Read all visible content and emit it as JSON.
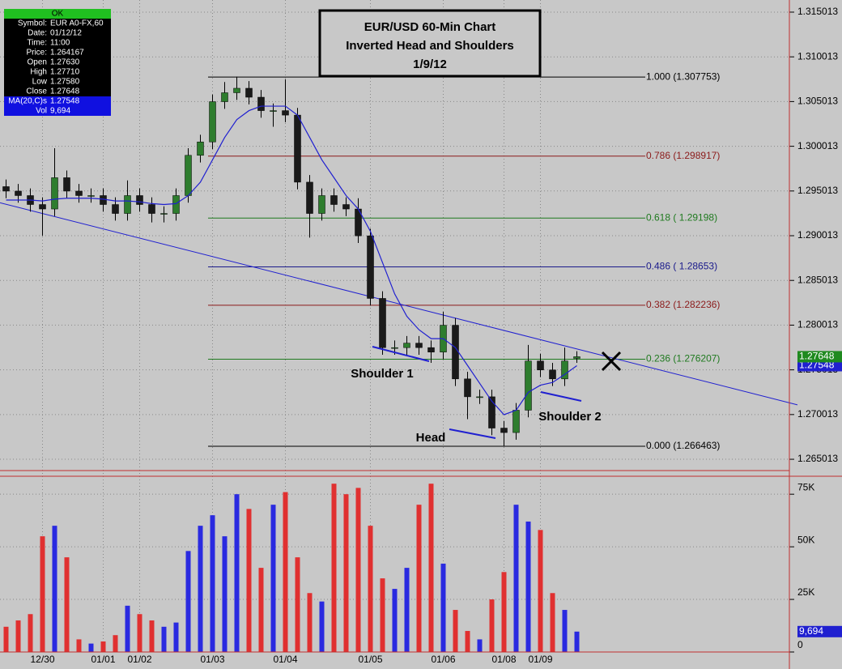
{
  "chart_data": {
    "type": "candlestick",
    "title": [
      "EUR/USD 60-Min Chart",
      "Inverted Head and Shoulders",
      "1/9/12"
    ],
    "info_box": {
      "status": "OK",
      "rows": [
        [
          "Symbol:",
          "EUR A0-FX,60"
        ],
        [
          "Date:",
          "01/12/12"
        ],
        [
          "Time:",
          "11:00"
        ],
        [
          "Price:",
          "1.264167"
        ],
        [
          "Open",
          "1.27630"
        ],
        [
          "High",
          "1.27710"
        ],
        [
          "Low",
          "1.27580"
        ],
        [
          "Close",
          "1.27648"
        ],
        [
          "MA(20,C)s",
          "1.27548"
        ],
        [
          "Vol",
          "9,694"
        ]
      ]
    },
    "categories": [
      null,
      null,
      null,
      "12/30",
      null,
      null,
      null,
      null,
      "01/01",
      null,
      null,
      "01/02",
      null,
      null,
      null,
      null,
      null,
      "01/03",
      null,
      null,
      null,
      null,
      null,
      "01/04",
      null,
      null,
      null,
      null,
      null,
      null,
      "01/05",
      null,
      null,
      null,
      null,
      null,
      "01/06",
      null,
      null,
      null,
      null,
      "01/08",
      null,
      null,
      "01/09",
      null,
      null,
      null
    ],
    "open": [
      1.2955,
      1.295,
      1.2945,
      1.2935,
      1.293,
      1.2965,
      1.295,
      1.2945,
      1.2945,
      1.2935,
      1.2925,
      1.2945,
      1.2935,
      1.2925,
      1.2925,
      1.2945,
      1.299,
      1.3005,
      1.305,
      1.306,
      1.3065,
      1.3055,
      1.304,
      1.304,
      1.3035,
      1.296,
      1.2925,
      1.2945,
      1.2935,
      1.293,
      1.29,
      1.283,
      1.2775,
      1.2775,
      1.278,
      1.2775,
      1.277,
      1.28,
      1.274,
      1.272,
      1.272,
      1.2685,
      1.268,
      1.2705,
      1.276,
      1.275,
      1.274,
      1.2763
    ],
    "high": [
      1.2963,
      1.2958,
      1.2953,
      1.2943,
      1.2998,
      1.2973,
      1.2958,
      1.2953,
      1.2953,
      1.2943,
      1.2962,
      1.2953,
      1.2943,
      1.2933,
      1.2953,
      1.2998,
      1.3013,
      1.3058,
      1.3072,
      1.3078,
      1.3073,
      1.3063,
      1.3048,
      1.3075,
      1.3043,
      1.2968,
      1.2953,
      1.2953,
      1.2943,
      1.2942,
      1.2908,
      1.2838,
      1.2783,
      1.2788,
      1.2788,
      1.2783,
      1.2815,
      1.2808,
      1.2748,
      1.2728,
      1.2728,
      1.2693,
      1.2713,
      1.2778,
      1.2768,
      1.2758,
      1.2775,
      1.2771
    ],
    "low": [
      1.2942,
      1.2937,
      1.2927,
      1.29,
      1.2922,
      1.2942,
      1.2937,
      1.2937,
      1.2927,
      1.2917,
      1.2917,
      1.2927,
      1.2915,
      1.2915,
      1.2917,
      1.2937,
      1.2982,
      1.2997,
      1.3042,
      1.3052,
      1.3047,
      1.3032,
      1.3022,
      1.3027,
      1.2952,
      1.2898,
      1.2917,
      1.2927,
      1.2922,
      1.2892,
      1.2822,
      1.2767,
      1.2767,
      1.2767,
      1.2767,
      1.2758,
      1.2762,
      1.2732,
      1.2695,
      1.2712,
      1.2677,
      1.2665,
      1.2672,
      1.2697,
      1.2742,
      1.2732,
      1.2732,
      1.2758
    ],
    "close": [
      1.295,
      1.2945,
      1.2935,
      1.293,
      1.2965,
      1.295,
      1.2945,
      1.2945,
      1.2935,
      1.2925,
      1.2945,
      1.2935,
      1.2925,
      1.2925,
      1.2945,
      1.299,
      1.3005,
      1.305,
      1.306,
      1.3065,
      1.3055,
      1.304,
      1.304,
      1.3035,
      1.296,
      1.2925,
      1.2945,
      1.2935,
      1.293,
      1.29,
      1.283,
      1.2775,
      1.2775,
      1.278,
      1.2775,
      1.277,
      1.28,
      1.274,
      1.272,
      1.272,
      1.2685,
      1.268,
      1.2705,
      1.276,
      1.275,
      1.274,
      1.276,
      1.27648
    ],
    "ma": [
      1.294,
      1.294,
      1.294,
      1.2939,
      1.2941,
      1.2942,
      1.2942,
      1.2942,
      1.2941,
      1.2939,
      1.2939,
      1.2938,
      1.2936,
      1.2935,
      1.2936,
      1.2945,
      1.296,
      1.2985,
      1.301,
      1.303,
      1.304,
      1.3045,
      1.3045,
      1.3045,
      1.3035,
      1.301,
      1.2985,
      1.2965,
      1.2945,
      1.293,
      1.2905,
      1.287,
      1.2835,
      1.281,
      1.2795,
      1.2785,
      1.2785,
      1.2775,
      1.2755,
      1.2735,
      1.2715,
      1.27,
      1.2705,
      1.2725,
      1.2733,
      1.2736,
      1.2745,
      1.27548
    ],
    "volume": [
      12000,
      15000,
      18000,
      55000,
      60000,
      45000,
      6000,
      4000,
      5000,
      8000,
      22000,
      18000,
      15000,
      12000,
      14000,
      48000,
      60000,
      65000,
      55000,
      75000,
      68000,
      40000,
      70000,
      76000,
      45000,
      28000,
      24000,
      80000,
      75000,
      78000,
      60000,
      35000,
      30000,
      40000,
      70000,
      80000,
      42000,
      20000,
      10000,
      6000,
      25000,
      38000,
      70000,
      62000,
      58000,
      28000,
      20000,
      9694
    ],
    "up_color": "#2e7d2e",
    "down_color": "#1a1a1a",
    "ma_color": "#2020d0",
    "vol_up_color": "#2a2ae0",
    "vol_down_color": "#e03030",
    "ylim": [
      1.26384,
      1.31637
    ],
    "yticks": [
      1.315013,
      1.310013,
      1.305013,
      1.300013,
      1.295013,
      1.290013,
      1.285013,
      1.280013,
      1.275013,
      1.270013,
      1.265013
    ],
    "vol_ylim": [
      0,
      82000
    ],
    "vol_yticks": [
      {
        "value": 75000,
        "label": "75K"
      },
      {
        "value": 50000,
        "label": "50K"
      },
      {
        "value": 25000,
        "label": "25K"
      },
      {
        "value": 0,
        "label": "0"
      }
    ],
    "fib_levels": [
      {
        "value": 1.307753,
        "label": "1.000 (1.307753)",
        "color": "#000000"
      },
      {
        "value": 1.298917,
        "label": "0.786 (1.298917)",
        "color": "#8b1a1a"
      },
      {
        "value": 1.29198,
        "label": "0.618 ( 1.29198)",
        "color": "#1f7a1f"
      },
      {
        "value": 1.28653,
        "label": "0.486 ( 1.28653)",
        "color": "#1a1a8b"
      },
      {
        "value": 1.282236,
        "label": "0.382 (1.282236)",
        "color": "#8b1a1a"
      },
      {
        "value": 1.276207,
        "label": "0.236 (1.276207)",
        "color": "#1f7a1f"
      },
      {
        "value": 1.266463,
        "label": "0.000 (1.266463)",
        "color": "#000000"
      }
    ],
    "trendline": [
      1.2937,
      1.2711
    ],
    "annotations": [
      "Shoulder 1",
      "Head",
      "Shoulder 2"
    ],
    "last_price": {
      "value": 1.27648,
      "label": "1.27648"
    },
    "last_ma": {
      "value": 1.27548,
      "label": "1.27548"
    },
    "last_volume": {
      "value": 9694,
      "label": "9,694"
    },
    "grid": true
  }
}
